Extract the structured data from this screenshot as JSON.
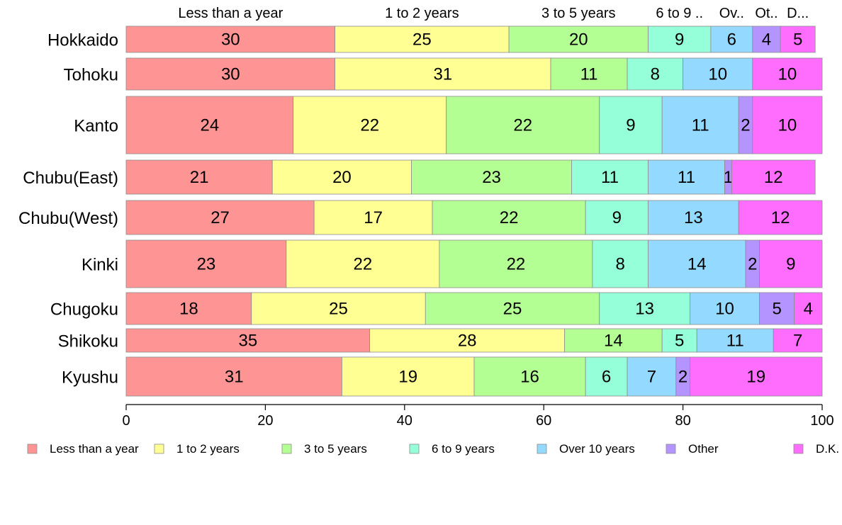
{
  "chart_data": {
    "type": "bar",
    "orientation": "horizontal",
    "stacked": true,
    "categories": [
      "Hokkaido",
      "Tohoku",
      "Kanto",
      "Chubu(East)",
      "Chubu(West)",
      "Kinki",
      "Chugoku",
      "Shikoku",
      "Kyushu"
    ],
    "series": [
      {
        "name": "Less than a year",
        "color": "#ff9494",
        "values": [
          30,
          30,
          24,
          21,
          27,
          23,
          18,
          35,
          31
        ]
      },
      {
        "name": "1 to 2 years",
        "color": "#ffff94",
        "values": [
          25,
          31,
          22,
          20,
          17,
          22,
          25,
          28,
          19
        ]
      },
      {
        "name": "3 to 5 years",
        "color": "#b4ff94",
        "values": [
          20,
          11,
          22,
          23,
          22,
          22,
          25,
          14,
          16
        ]
      },
      {
        "name": "6 to 9 years",
        "color": "#94ffd9",
        "values": [
          9,
          8,
          9,
          11,
          9,
          8,
          13,
          5,
          6
        ]
      },
      {
        "name": "Over 10 years",
        "color": "#94d9ff",
        "values": [
          6,
          10,
          11,
          11,
          13,
          14,
          10,
          11,
          7
        ]
      },
      {
        "name": "Other",
        "color": "#b494ff",
        "values": [
          4,
          0,
          2,
          1,
          0,
          2,
          5,
          0,
          2
        ]
      },
      {
        "name": "D.K.",
        "color": "#ff6dff",
        "values": [
          5,
          10,
          10,
          12,
          12,
          9,
          4,
          7,
          19
        ]
      }
    ],
    "top_labels": [
      "Less than a year",
      "1 to 2 years",
      "3 to 5 years",
      "6 to 9 ..",
      "Ov..",
      "Ot..",
      "D..."
    ],
    "xlim": [
      0,
      100
    ],
    "xticks": [
      0,
      20,
      40,
      60,
      80,
      100
    ],
    "legend_position": "bottom",
    "grid": false
  }
}
